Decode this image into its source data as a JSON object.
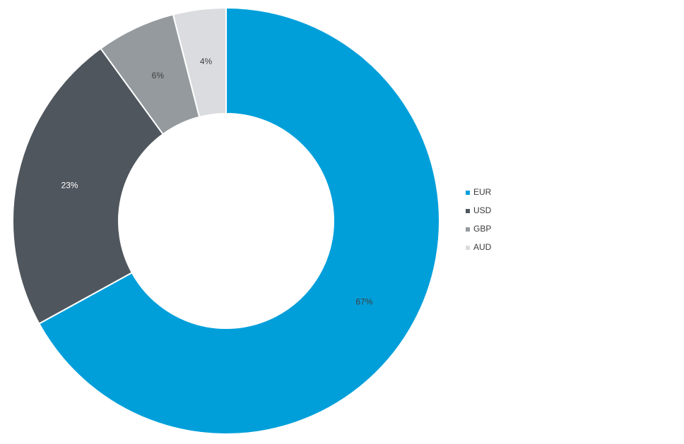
{
  "chart_data": {
    "type": "pie",
    "donut": true,
    "title": "",
    "categories": [
      "EUR",
      "USD",
      "GBP",
      "AUD"
    ],
    "values": [
      67,
      23,
      6,
      4
    ],
    "labels": [
      "67%",
      "23%",
      "6%",
      "4%"
    ],
    "colors": [
      "#009fda",
      "#50565d",
      "#949a9e",
      "#dadcdf"
    ],
    "label_colors": [
      "#404040",
      "#ffffff",
      "#404040",
      "#404040"
    ],
    "legend_position": "right"
  }
}
